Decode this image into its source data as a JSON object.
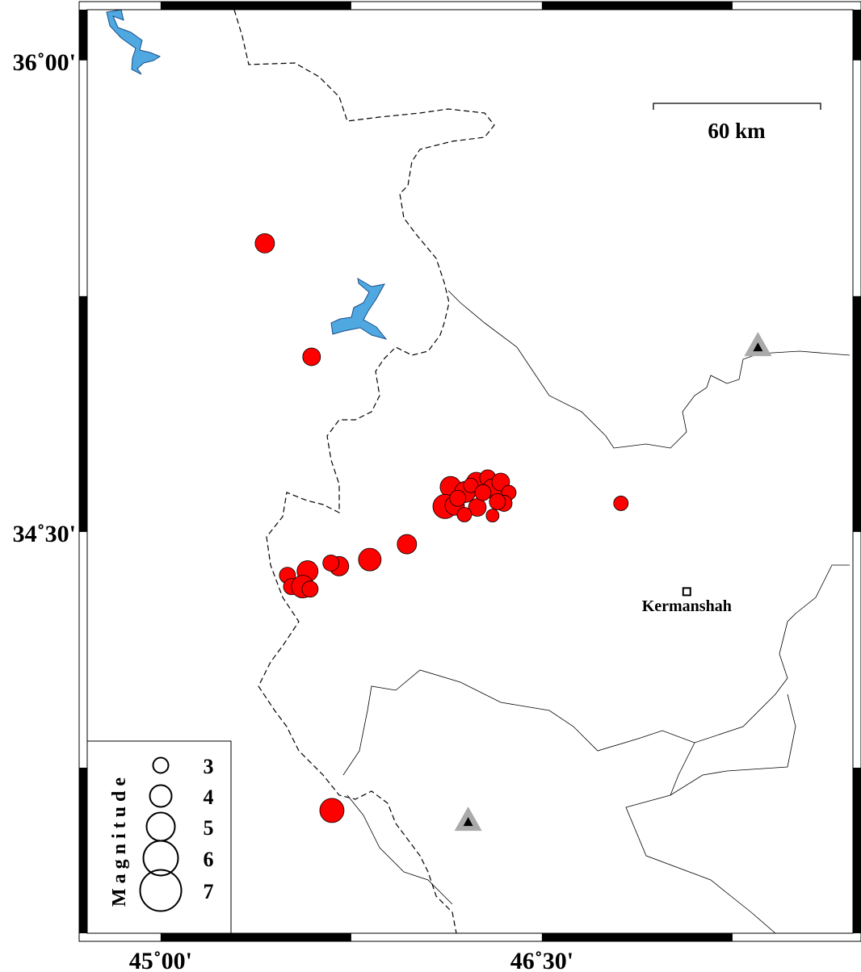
{
  "map": {
    "extent": {
      "lon": [
        44.7113,
        47.7237
      ],
      "lat": [
        33.2234,
        36.1612
      ]
    },
    "lon_ticks": [
      {
        "value": 45.0,
        "label": "45˚00'"
      },
      {
        "value": 46.5,
        "label": "46˚30'"
      }
    ],
    "lat_ticks": [
      {
        "value": 36.0,
        "label": "36˚00'"
      },
      {
        "value": 34.5,
        "label": "34˚30'"
      }
    ],
    "scale_bar": {
      "label": "60 km",
      "length_km": 60
    },
    "colors": {
      "event": "#ff0000",
      "water": "#4fa8e0",
      "station": "#aaaaaa"
    },
    "city": {
      "name": "Kermanshah",
      "lon": 47.07,
      "lat": 34.31,
      "icon": "square-city-marker"
    },
    "stations": [
      {
        "lon": 47.35,
        "lat": 35.09,
        "icon": "triangle-station"
      },
      {
        "lon": 46.21,
        "lat": 33.58,
        "icon": "triangle-station"
      }
    ],
    "events": [
      {
        "lon": 45.41,
        "lat": 35.418,
        "mag": 3.5
      },
      {
        "lon": 45.594,
        "lat": 35.057,
        "mag": 3.25
      },
      {
        "lon": 46.811,
        "lat": 34.591,
        "mag": 2.75
      },
      {
        "lon": 45.969,
        "lat": 34.461,
        "mag": 3.5
      },
      {
        "lon": 45.823,
        "lat": 34.412,
        "mag": 4.0
      },
      {
        "lon": 45.702,
        "lat": 34.391,
        "mag": 3.5
      },
      {
        "lon": 45.67,
        "lat": 34.401,
        "mag": 3.0
      },
      {
        "lon": 45.578,
        "lat": 34.375,
        "mag": 3.75
      },
      {
        "lon": 45.499,
        "lat": 34.362,
        "mag": 3.0
      },
      {
        "lon": 45.515,
        "lat": 34.326,
        "mag": 3.0
      },
      {
        "lon": 45.559,
        "lat": 34.326,
        "mag": 4.0
      },
      {
        "lon": 45.588,
        "lat": 34.318,
        "mag": 3.0
      },
      {
        "lon": 45.674,
        "lat": 33.614,
        "mag": 4.25
      },
      {
        "lon": 46.141,
        "lat": 34.643,
        "mag": 3.75
      },
      {
        "lon": 46.119,
        "lat": 34.581,
        "mag": 4.25
      },
      {
        "lon": 46.157,
        "lat": 34.584,
        "mag": 3.5
      },
      {
        "lon": 46.198,
        "lat": 34.627,
        "mag": 3.75
      },
      {
        "lon": 46.242,
        "lat": 34.659,
        "mag": 3.5
      },
      {
        "lon": 46.287,
        "lat": 34.672,
        "mag": 3.0
      },
      {
        "lon": 46.306,
        "lat": 34.638,
        "mag": 3.5
      },
      {
        "lon": 46.338,
        "lat": 34.659,
        "mag": 3.25
      },
      {
        "lon": 46.37,
        "lat": 34.625,
        "mag": 2.75
      },
      {
        "lon": 46.351,
        "lat": 34.591,
        "mag": 3.0
      },
      {
        "lon": 46.325,
        "lat": 34.596,
        "mag": 3.0
      },
      {
        "lon": 46.306,
        "lat": 34.552,
        "mag": 2.5
      },
      {
        "lon": 46.246,
        "lat": 34.578,
        "mag": 3.25
      },
      {
        "lon": 46.195,
        "lat": 34.555,
        "mag": 2.75
      },
      {
        "lon": 46.22,
        "lat": 34.648,
        "mag": 2.75
      },
      {
        "lon": 46.268,
        "lat": 34.625,
        "mag": 3.0
      },
      {
        "lon": 46.169,
        "lat": 34.607,
        "mag": 3.0
      }
    ],
    "legend": {
      "title": "Magnitude",
      "items": [
        {
          "mag": 3,
          "label": "3"
        },
        {
          "mag": 4,
          "label": "4"
        },
        {
          "mag": 5,
          "label": "5"
        },
        {
          "mag": 6,
          "label": "6"
        },
        {
          "mag": 7,
          "label": "7"
        }
      ]
    }
  }
}
